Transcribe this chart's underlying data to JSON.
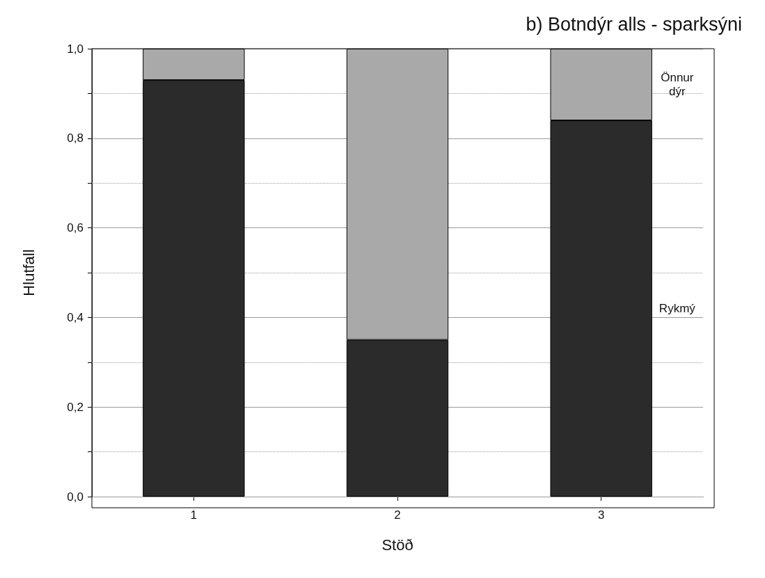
{
  "chart_data": {
    "type": "bar",
    "title": "b) Botndýr alls - sparksýni",
    "xlabel": "Stöð",
    "ylabel": "Hlutfall",
    "categories": [
      "1",
      "2",
      "3"
    ],
    "stacked": true,
    "series": [
      {
        "name": "Rykmý",
        "color": "#2b2b2b",
        "values": [
          0.93,
          0.35,
          0.84
        ]
      },
      {
        "name": "Önnur dýr",
        "color": "#a9a9a9",
        "values": [
          0.07,
          0.65,
          0.16
        ]
      }
    ],
    "ylim": [
      0,
      1
    ],
    "yticks": [
      {
        "value": 0,
        "label": "0,0"
      },
      {
        "value": 0.1,
        "label": null
      },
      {
        "value": 0.2,
        "label": "0,2"
      },
      {
        "value": 0.3,
        "label": null
      },
      {
        "value": 0.4,
        "label": "0,4"
      },
      {
        "value": 0.5,
        "label": null
      },
      {
        "value": 0.6,
        "label": "0,6"
      },
      {
        "value": 0.7,
        "label": null
      },
      {
        "value": 0.8,
        "label": "0,8"
      },
      {
        "value": 0.9,
        "label": null
      },
      {
        "value": 1,
        "label": "1,0"
      }
    ],
    "grid": "y",
    "legend": false
  }
}
